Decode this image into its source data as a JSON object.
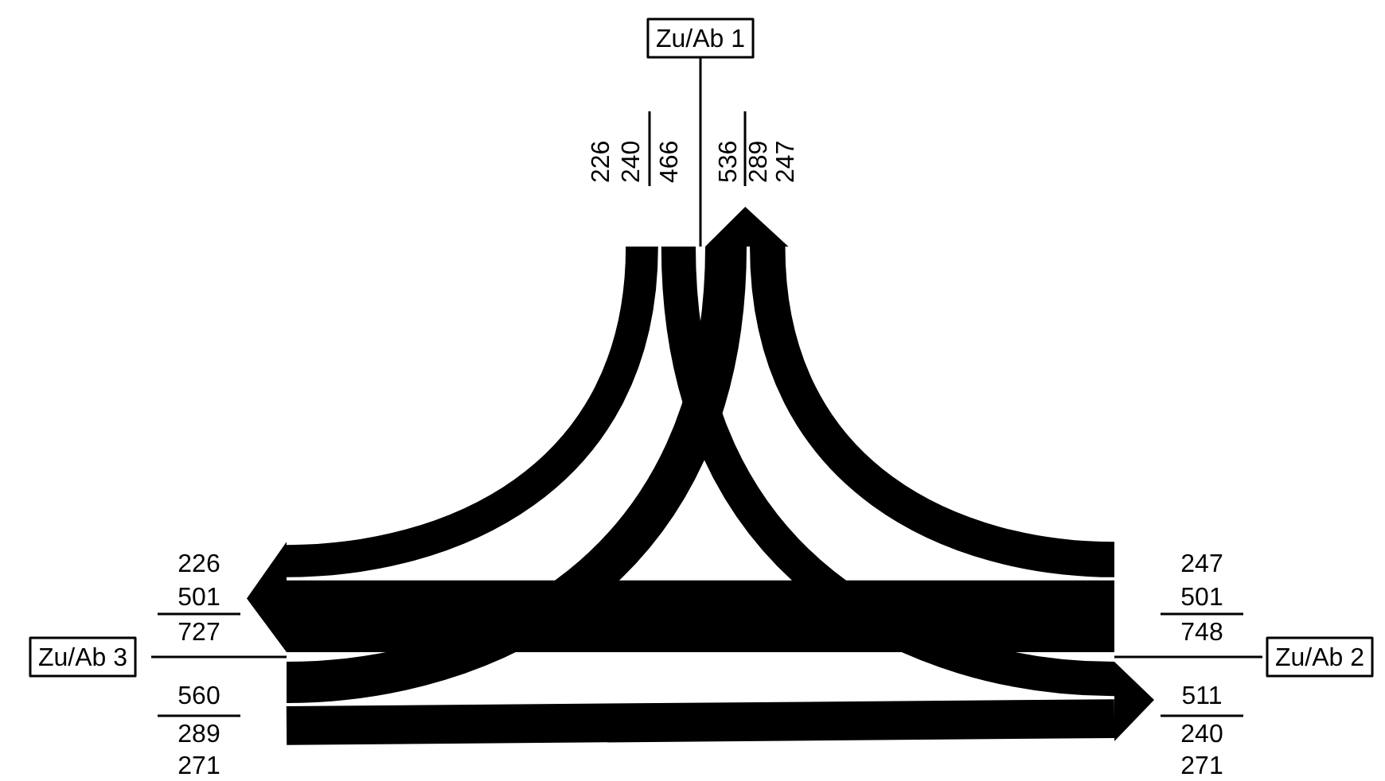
{
  "chart_data": {
    "type": "other",
    "categories": [
      "Zu/Ab 1",
      "Zu/Ab 2",
      "Zu/Ab 3"
    ],
    "series": [
      {
        "color": "#000000",
        "values": [
          null,
          240,
          226
        ],
        "value_labels": [
          null,
          "240",
          "226"
        ]
      },
      {
        "color": "#000000",
        "values": [
          247,
          null,
          501
        ],
        "value_labels": [
          "247",
          null,
          "501"
        ]
      },
      {
        "color": "#000000",
        "values": [
          289,
          271,
          null
        ],
        "value_labels": [
          "289",
          "271",
          null
        ]
      }
    ],
    "totals": [
      "466",
      "536",
      "748",
      "511",
      "560",
      "727"
    ]
  }
}
